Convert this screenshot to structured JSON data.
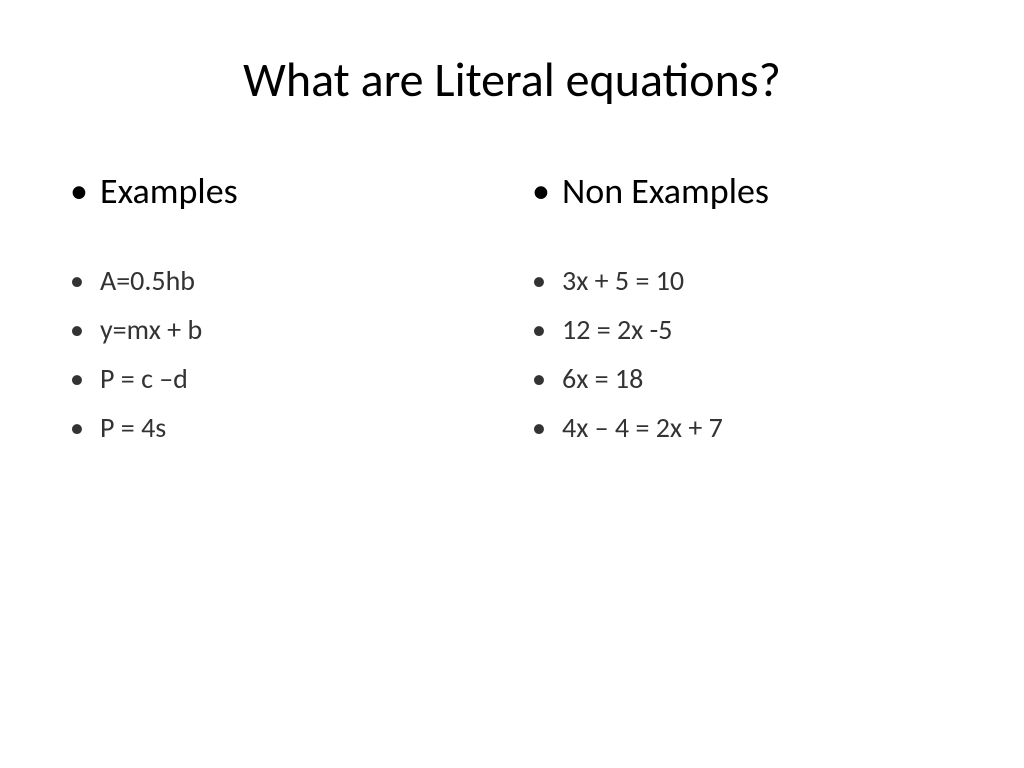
{
  "title": "What are Literal equations?",
  "left_column": {
    "header": "Examples",
    "items": [
      "A=0.5hb",
      "y=mx + b",
      "P = c –d",
      "P = 4s"
    ]
  },
  "right_column": {
    "header": "Non  Examples",
    "items": [
      "3x + 5 = 10",
      "12 = 2x -5",
      "6x = 18",
      "4x – 4 = 2x + 7"
    ]
  },
  "styles": {
    "background_color": "#ffffff",
    "text_color": "#000000",
    "item_color": "#333333",
    "title_fontsize": 48,
    "header_fontsize": 36,
    "item_fontsize": 28,
    "font_family": "Calibri, Arial, sans-serif"
  }
}
